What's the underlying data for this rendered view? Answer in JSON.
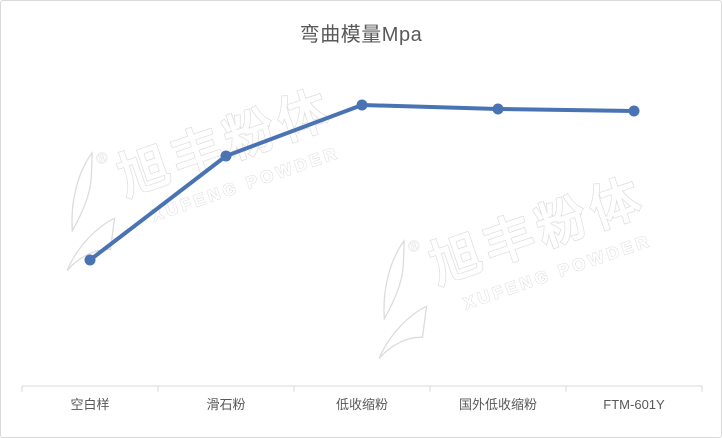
{
  "title": {
    "text": "弯曲模量Mpa",
    "color": "#595959"
  },
  "watermark": {
    "cn": "旭丰粉体",
    "en": "XUFENG POWDER",
    "registered": "®"
  },
  "chart_data": {
    "type": "line",
    "title": "弯曲模量Mpa",
    "categories": [
      "空白样",
      "滑石粉",
      "低收缩粉",
      "国外低收缩粉",
      "FTM-601Y"
    ],
    "series": [
      {
        "name": "弯曲模量Mpa",
        "values": [
          126,
          230,
          281,
          277,
          275
        ]
      }
    ],
    "value_note": "value axis is not labeled in the source chart; values are relative heights read from pixels",
    "ylim": [
      0,
      320
    ],
    "xlabel": "",
    "ylabel": "",
    "gridlines": false,
    "legend": "none",
    "y_axis_visible": false,
    "line_color": "#4a73b4",
    "marker": "circle",
    "axis_color": "#d9d9d9",
    "label_color": "#595959"
  }
}
